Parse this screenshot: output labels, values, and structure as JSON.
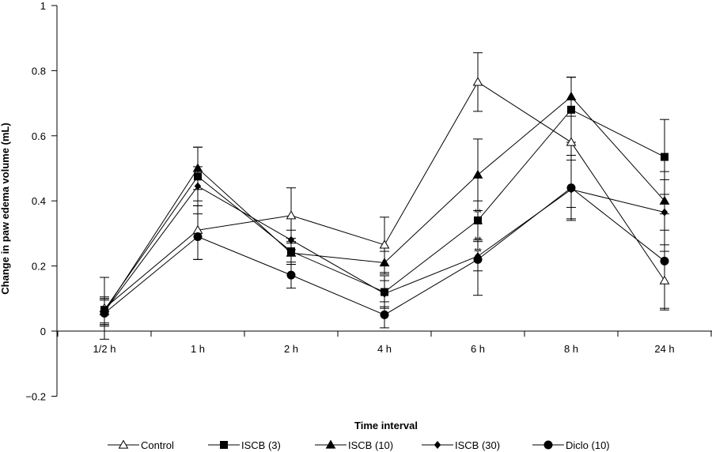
{
  "chart_data": {
    "type": "line",
    "xlabel": "Time interval",
    "ylabel": "Change in paw edema volume (mL)",
    "categories": [
      "1/2 h",
      "1 h",
      "2 h",
      "4 h",
      "6 h",
      "8 h",
      "24 h"
    ],
    "ylim": [
      -0.2,
      1
    ],
    "yticks": [
      "−0.2",
      "0",
      "0.2",
      "0.4",
      "0.6",
      "0.8",
      "1"
    ],
    "ytick_values": [
      -0.2,
      0,
      0.2,
      0.4,
      0.6,
      0.8,
      1
    ],
    "grid": false,
    "legend_position": "bottom",
    "series": [
      {
        "name": "Control",
        "marker": "triangle-open",
        "values": [
          0.07,
          0.31,
          0.355,
          0.265,
          0.765,
          0.58,
          0.155
        ],
        "errors": [
          0.095,
          0.09,
          0.085,
          0.085,
          0.09,
          0.2,
          0.09
        ]
      },
      {
        "name": "ISCB (3)",
        "marker": "square",
        "values": [
          0.065,
          0.475,
          0.245,
          0.12,
          0.34,
          0.68,
          0.535
        ],
        "errors": [
          0.04,
          0.09,
          0.04,
          0.05,
          0.06,
          0.1,
          0.115
        ]
      },
      {
        "name": "ISCB (10)",
        "marker": "triangle",
        "values": [
          0.06,
          0.5,
          0.24,
          0.21,
          0.48,
          0.72,
          0.4
        ],
        "errors": [
          0.04,
          0.065,
          0.035,
          0.035,
          0.11,
          0.06,
          0.09
        ]
      },
      {
        "name": "ISCB (30)",
        "marker": "diamond",
        "values": [
          0.06,
          0.445,
          0.28,
          0.115,
          0.23,
          0.435,
          0.365
        ],
        "errors": [
          0.04,
          0.06,
          0.03,
          0.04,
          0.045,
          0.09,
          0.1
        ]
      },
      {
        "name": "Diclo (10)",
        "marker": "circle",
        "values": [
          0.055,
          0.29,
          0.172,
          0.05,
          0.22,
          0.44,
          0.215
        ],
        "errors": [
          0.04,
          0.07,
          0.04,
          0.04,
          0.11,
          0.1,
          0.145
        ]
      }
    ],
    "annotations": [
      {
        "text": "**",
        "x": "6 h",
        "y": 0.375
      },
      {
        "text": "**",
        "x": "6 h",
        "y": 0.29
      },
      {
        "text": "**",
        "x": "6 h",
        "y": 0.255
      }
    ]
  }
}
